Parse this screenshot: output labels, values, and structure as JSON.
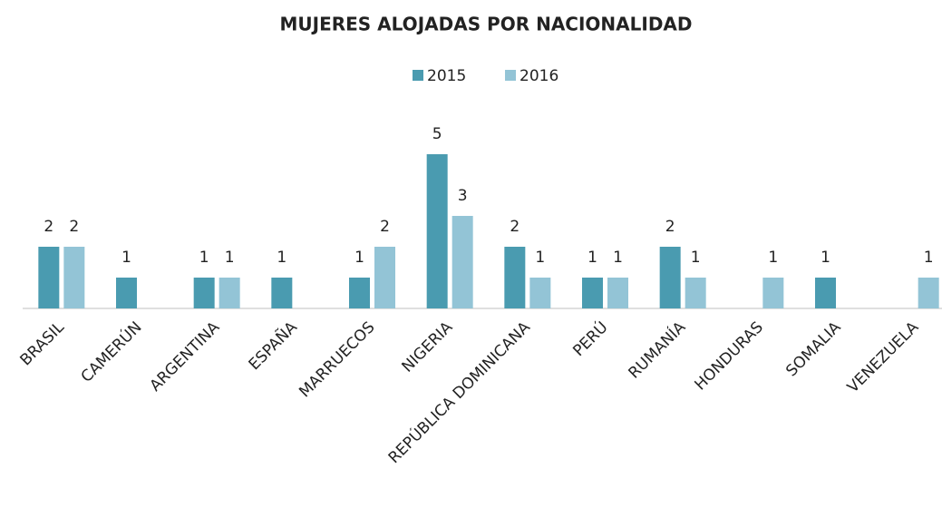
{
  "chart_data": {
    "type": "bar",
    "title": "MUJERES ALOJADAS POR NACIONALIDAD",
    "categories": [
      "BRASIL",
      "CAMERÚN",
      "ARGENTINA",
      "ESPAÑA",
      "MARRUECOS",
      "NIGERIA",
      "REPÚBLICA DOMINICANA",
      "PERÚ",
      "RUMANÍA",
      "HONDURAS",
      "SOMALIA",
      "VENEZUELA"
    ],
    "series": [
      {
        "name": "2015",
        "color": "#4a9bb0",
        "values": [
          2,
          1,
          1,
          1,
          1,
          5,
          2,
          1,
          2,
          null,
          1,
          null
        ]
      },
      {
        "name": "2016",
        "color": "#93c4d6",
        "values": [
          2,
          null,
          1,
          null,
          2,
          3,
          1,
          1,
          1,
          1,
          null,
          1
        ]
      }
    ],
    "legend": "top"
  }
}
